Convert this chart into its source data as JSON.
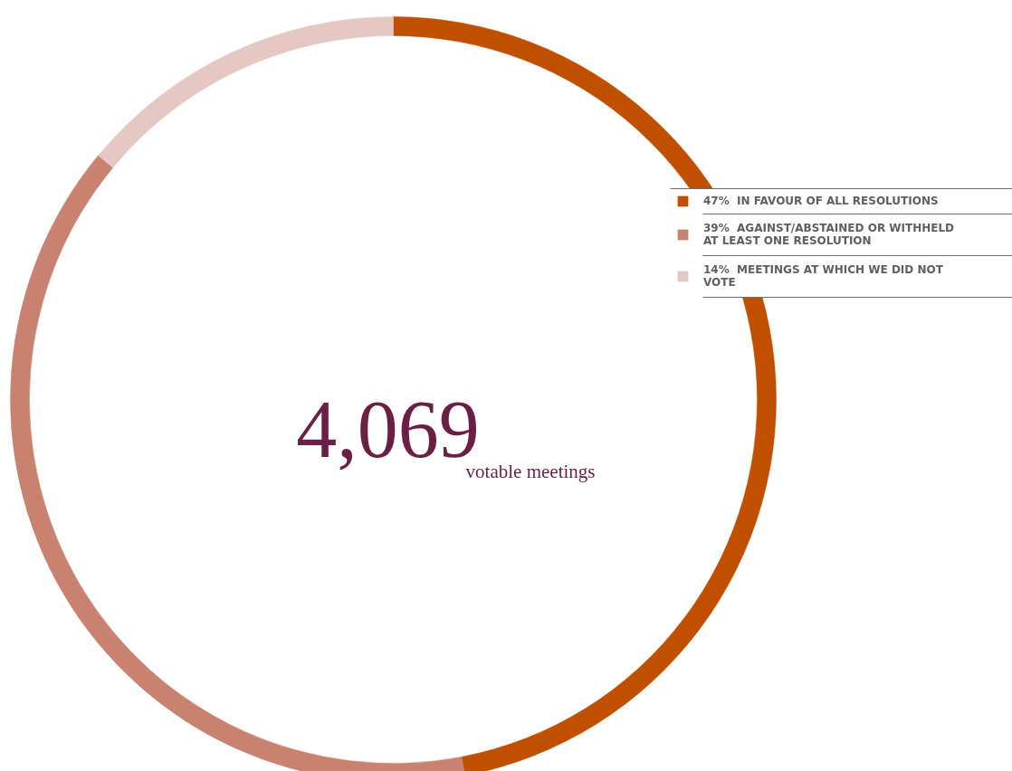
{
  "chart_data": {
    "type": "donut",
    "categories": [
      "IN FAVOUR OF ALL RESOLUTIONS",
      "AGAINST/ABSTAINED OR WITHHELD AT LEAST ONE RESOLUTION",
      "MEETINGS AT WHICH WE DID NOT VOTE"
    ],
    "values": [
      47,
      39,
      14
    ],
    "colors": [
      "#c05000",
      "#c98170",
      "#e5c8c3"
    ],
    "value_labels": [
      "47%",
      "39%",
      "14%"
    ],
    "legend": "top right",
    "annotations": [
      "4,069",
      "votable meetings"
    ]
  }
}
